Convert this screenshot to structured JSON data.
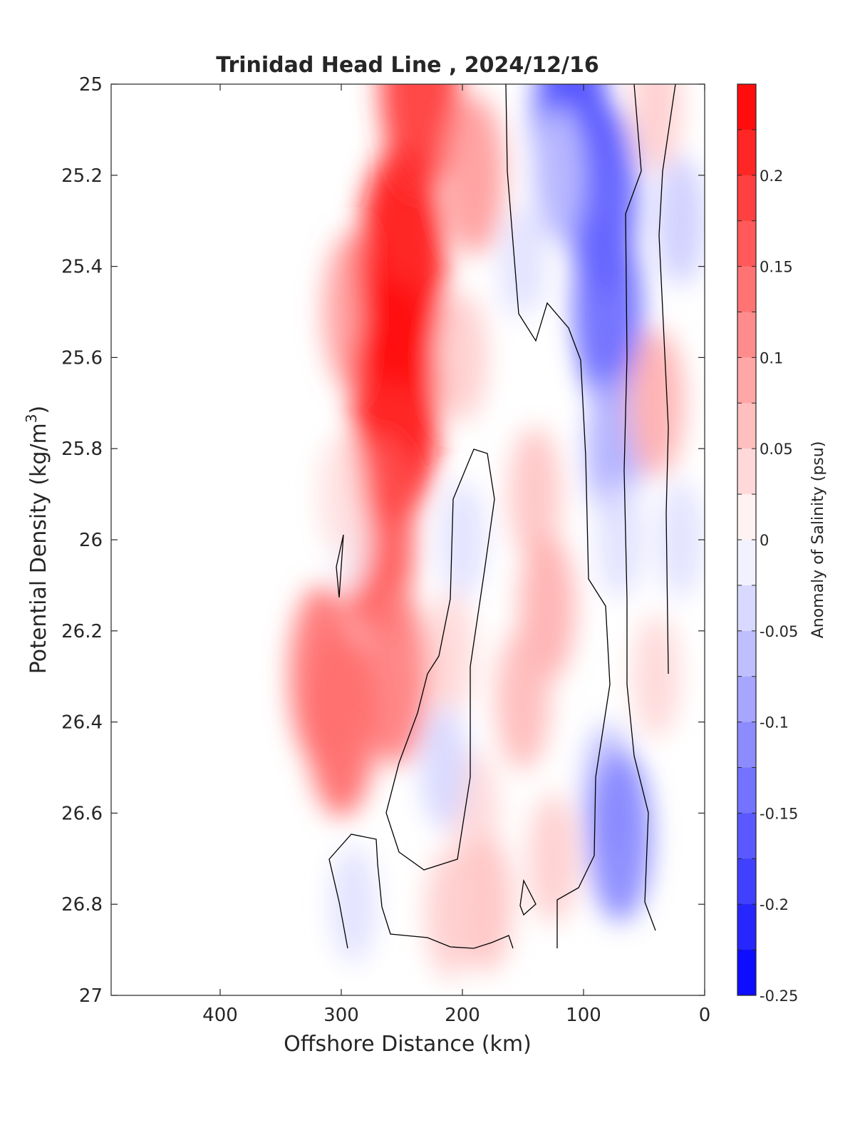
{
  "chart_data": {
    "type": "heatmap",
    "title": "Trinidad Head Line , 2024/12/16",
    "xlabel": "Offshore Distance (km)",
    "ylabel_main": "Potential Density (kg/m",
    "ylabel_sup": "3",
    "ylabel_close": ")",
    "colorbar_label": "Anomaly of Salinity (psu)",
    "xlim": [
      490,
      0
    ],
    "ylim": [
      25,
      27
    ],
    "x_reversed": true,
    "y_reversed": true,
    "x_ticks": [
      400,
      300,
      200,
      100,
      0
    ],
    "y_ticks": [
      25,
      25.2,
      25.4,
      25.6,
      25.8,
      26,
      26.2,
      26.4,
      26.6,
      26.8,
      27
    ],
    "colorbar_ticks": [
      0.2,
      0.15,
      0.1,
      0.05,
      0,
      -0.05,
      -0.1,
      -0.15,
      -0.2,
      -0.25
    ],
    "colorbar_range": [
      -0.25,
      0.25
    ],
    "colorbar_levels": 20,
    "colormap": {
      "positive": "#ff0000",
      "zero": "#ffffff",
      "negative": "#0000ff"
    },
    "contour_level": 0,
    "grid": false,
    "field": [
      {
        "x": 290,
        "y": 25.5,
        "value": 0.1
      },
      {
        "x": 250,
        "y": 25.4,
        "value": 0.24
      },
      {
        "x": 255,
        "y": 25.7,
        "value": 0.24
      },
      {
        "x": 235,
        "y": 25.0,
        "value": 0.2
      },
      {
        "x": 270,
        "y": 26.0,
        "value": 0.17
      },
      {
        "x": 255,
        "y": 26.3,
        "value": 0.13
      },
      {
        "x": 300,
        "y": 26.4,
        "value": 0.15
      },
      {
        "x": 315,
        "y": 26.3,
        "value": 0.14
      },
      {
        "x": 295,
        "y": 26.0,
        "value": -0.01
      },
      {
        "x": 300,
        "y": 25.9,
        "value": 0.03
      },
      {
        "x": 190,
        "y": 25.2,
        "value": 0.1
      },
      {
        "x": 200,
        "y": 25.6,
        "value": 0.05
      },
      {
        "x": 200,
        "y": 26.0,
        "value": -0.03
      },
      {
        "x": 210,
        "y": 26.25,
        "value": 0.04
      },
      {
        "x": 140,
        "y": 25.9,
        "value": 0.06
      },
      {
        "x": 130,
        "y": 26.15,
        "value": 0.08
      },
      {
        "x": 150,
        "y": 26.35,
        "value": 0.07
      },
      {
        "x": 190,
        "y": 26.6,
        "value": 0.04
      },
      {
        "x": 180,
        "y": 26.8,
        "value": 0.06
      },
      {
        "x": 210,
        "y": 26.82,
        "value": 0.05
      },
      {
        "x": 215,
        "y": 26.5,
        "value": -0.04
      },
      {
        "x": 290,
        "y": 26.8,
        "value": -0.03
      },
      {
        "x": 125,
        "y": 26.7,
        "value": 0.05
      },
      {
        "x": 150,
        "y": 25.4,
        "value": -0.03
      },
      {
        "x": 145,
        "y": 25.6,
        "value": 0.0
      },
      {
        "x": 110,
        "y": 25.1,
        "value": -0.18
      },
      {
        "x": 85,
        "y": 25.25,
        "value": -0.16
      },
      {
        "x": 80,
        "y": 25.5,
        "value": -0.15
      },
      {
        "x": 75,
        "y": 25.8,
        "value": -0.08
      },
      {
        "x": 120,
        "y": 25.2,
        "value": -0.06
      },
      {
        "x": 70,
        "y": 26.0,
        "value": -0.03
      },
      {
        "x": 80,
        "y": 26.55,
        "value": -0.06
      },
      {
        "x": 70,
        "y": 26.65,
        "value": -0.12
      },
      {
        "x": 40,
        "y": 25.05,
        "value": 0.05
      },
      {
        "x": 40,
        "y": 25.7,
        "value": 0.08
      },
      {
        "x": 40,
        "y": 26.3,
        "value": 0.04
      },
      {
        "x": 20,
        "y": 25.3,
        "value": -0.05
      },
      {
        "x": 20,
        "y": 26.0,
        "value": -0.03
      }
    ]
  }
}
